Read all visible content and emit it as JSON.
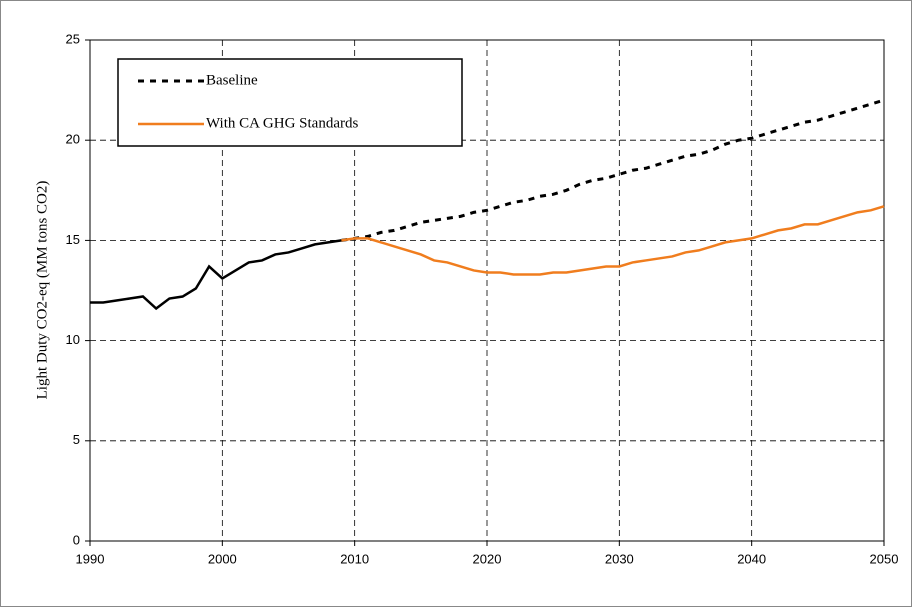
{
  "chart_data": {
    "type": "line",
    "ylabel": "Light Duty CO2-eq (MM tons CO2)",
    "x": [
      1990,
      1991,
      1992,
      1993,
      1994,
      1995,
      1996,
      1997,
      1998,
      1999,
      2000,
      2001,
      2002,
      2003,
      2004,
      2005,
      2006,
      2007,
      2008,
      2009,
      2010,
      2011,
      2012,
      2013,
      2014,
      2015,
      2016,
      2017,
      2018,
      2019,
      2020,
      2021,
      2022,
      2023,
      2024,
      2025,
      2026,
      2027,
      2028,
      2029,
      2030,
      2031,
      2032,
      2033,
      2034,
      2035,
      2036,
      2037,
      2038,
      2039,
      2040,
      2041,
      2042,
      2043,
      2044,
      2045,
      2046,
      2047,
      2048,
      2049,
      2050
    ],
    "series": [
      {
        "color": "#000000",
        "dashed": false,
        "values": [
          11.9,
          11.9,
          12.0,
          12.1,
          12.2,
          11.6,
          12.1,
          12.2,
          12.6,
          13.7,
          13.1,
          13.5,
          13.9,
          14.0,
          14.3,
          14.4,
          14.6,
          14.8,
          14.9,
          15.0,
          null,
          null,
          null,
          null,
          null,
          null,
          null,
          null,
          null,
          null,
          null,
          null,
          null,
          null,
          null,
          null,
          null,
          null,
          null,
          null,
          null,
          null,
          null,
          null,
          null,
          null,
          null,
          null,
          null,
          null,
          null,
          null,
          null,
          null,
          null,
          null,
          null,
          null,
          null,
          null,
          null
        ]
      },
      {
        "name": "Baseline",
        "color": "#000000",
        "dashed": true,
        "values": [
          null,
          null,
          null,
          null,
          null,
          null,
          null,
          null,
          null,
          null,
          null,
          null,
          null,
          null,
          null,
          null,
          null,
          null,
          null,
          15.0,
          15.1,
          15.2,
          15.4,
          15.5,
          15.7,
          15.9,
          16.0,
          16.1,
          16.2,
          16.4,
          16.5,
          16.7,
          16.9,
          17.0,
          17.2,
          17.3,
          17.5,
          17.8,
          18.0,
          18.1,
          18.3,
          18.5,
          18.6,
          18.8,
          19.0,
          19.2,
          19.3,
          19.5,
          19.8,
          20.0,
          20.1,
          20.3,
          20.5,
          20.7,
          20.9,
          21.0,
          21.2,
          21.4,
          21.6,
          21.8,
          22.0
        ]
      },
      {
        "name": "With CA GHG Standards",
        "color": "#f07d1e",
        "dashed": false,
        "values": [
          null,
          null,
          null,
          null,
          null,
          null,
          null,
          null,
          null,
          null,
          null,
          null,
          null,
          null,
          null,
          null,
          null,
          null,
          null,
          15.0,
          15.1,
          15.1,
          14.9,
          14.7,
          14.5,
          14.3,
          14.0,
          13.9,
          13.7,
          13.5,
          13.4,
          13.4,
          13.3,
          13.3,
          13.3,
          13.4,
          13.4,
          13.5,
          13.6,
          13.7,
          13.7,
          13.9,
          14.0,
          14.1,
          14.2,
          14.4,
          14.5,
          14.7,
          14.9,
          15.0,
          15.1,
          15.3,
          15.5,
          15.6,
          15.8,
          15.8,
          16.0,
          16.2,
          16.4,
          16.5,
          16.7
        ]
      }
    ],
    "xlim": [
      1990,
      2050
    ],
    "xticks": [
      1990,
      2000,
      2010,
      2020,
      2030,
      2040,
      2050
    ],
    "ylim": [
      0,
      25
    ],
    "yticks": [
      0,
      5,
      10,
      15,
      20,
      25
    ],
    "grid": true,
    "legend": "top-left"
  }
}
